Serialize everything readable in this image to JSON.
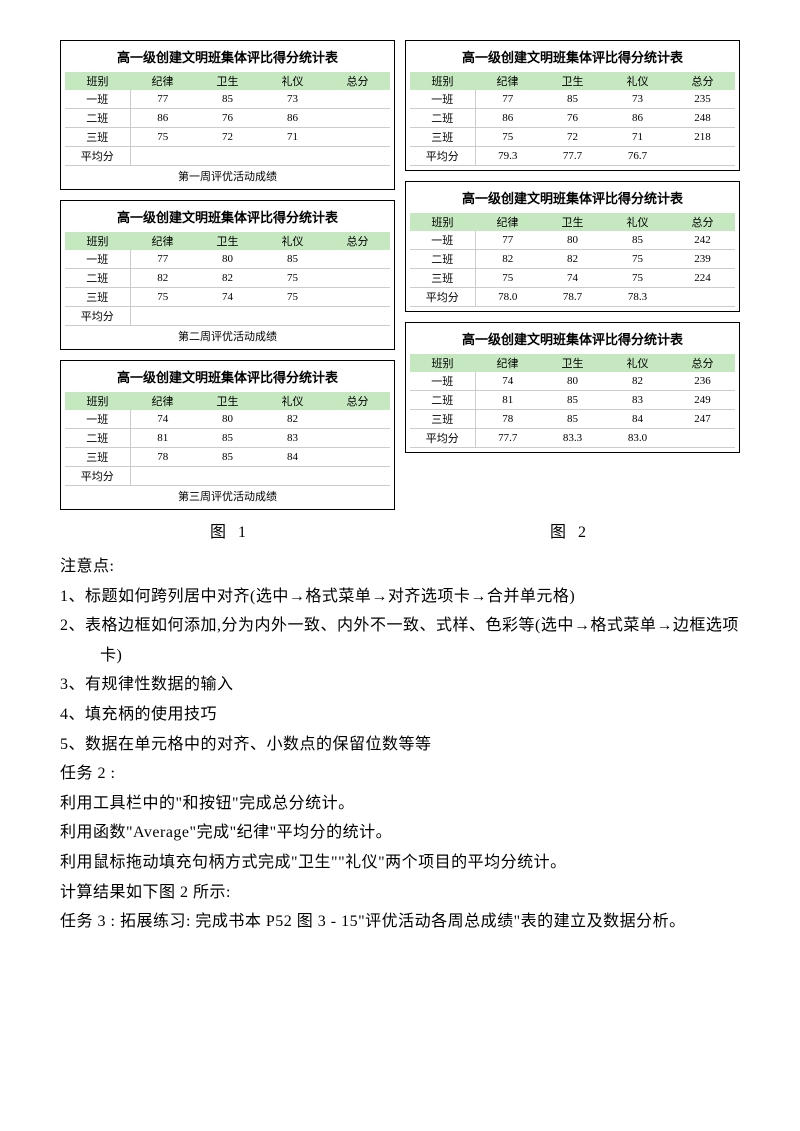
{
  "common": {
    "title": "高一级创建文明班集体评比得分统计表",
    "columns": [
      "班别",
      "纪律",
      "卫生",
      "礼仪",
      "总分"
    ],
    "classes": [
      "一班",
      "二班",
      "三班",
      "平均分"
    ],
    "captions": [
      "第一周评优活动成绩",
      "第二周评优活动成绩",
      "第三周评优活动成绩"
    ]
  },
  "left_tables": [
    {
      "rows": [
        [
          "一班",
          "77",
          "85",
          "73",
          ""
        ],
        [
          "二班",
          "86",
          "76",
          "86",
          ""
        ],
        [
          "三班",
          "75",
          "72",
          "71",
          ""
        ],
        [
          "平均分",
          "",
          "",
          "",
          ""
        ]
      ],
      "caption": "第一周评优活动成绩"
    },
    {
      "rows": [
        [
          "一班",
          "77",
          "80",
          "85",
          ""
        ],
        [
          "二班",
          "82",
          "82",
          "75",
          ""
        ],
        [
          "三班",
          "75",
          "74",
          "75",
          ""
        ],
        [
          "平均分",
          "",
          "",
          "",
          ""
        ]
      ],
      "caption": "第二周评优活动成绩"
    },
    {
      "rows": [
        [
          "一班",
          "74",
          "80",
          "82",
          ""
        ],
        [
          "二班",
          "81",
          "85",
          "83",
          ""
        ],
        [
          "三班",
          "78",
          "85",
          "84",
          ""
        ],
        [
          "平均分",
          "",
          "",
          "",
          ""
        ]
      ],
      "caption": "第三周评优活动成绩"
    }
  ],
  "right_tables": [
    {
      "rows": [
        [
          "一班",
          "77",
          "85",
          "73",
          "235"
        ],
        [
          "二班",
          "86",
          "76",
          "86",
          "248"
        ],
        [
          "三班",
          "75",
          "72",
          "71",
          "218"
        ],
        [
          "平均分",
          "79.3",
          "77.7",
          "76.7",
          ""
        ]
      ]
    },
    {
      "rows": [
        [
          "一班",
          "77",
          "80",
          "85",
          "242"
        ],
        [
          "二班",
          "82",
          "82",
          "75",
          "239"
        ],
        [
          "三班",
          "75",
          "74",
          "75",
          "224"
        ],
        [
          "平均分",
          "78.0",
          "78.7",
          "78.3",
          ""
        ]
      ]
    },
    {
      "rows": [
        [
          "一班",
          "74",
          "80",
          "82",
          "236"
        ],
        [
          "二班",
          "81",
          "85",
          "83",
          "249"
        ],
        [
          "三班",
          "78",
          "85",
          "84",
          "247"
        ],
        [
          "平均分",
          "77.7",
          "83.3",
          "83.0",
          ""
        ]
      ]
    }
  ],
  "fig_labels": [
    "图 1",
    "图 2"
  ],
  "body": {
    "note_title": "注意点:",
    "notes": [
      "1、标题如何跨列居中对齐(选中→格式菜单→对齐选项卡→合并单元格)",
      "2、表格边框如何添加,分为内外一致、内外不一致、式样、色彩等(选中→格式菜单→边框选项卡)",
      "3、有规律性数据的输入",
      "4、填充柄的使用技巧",
      "5、数据在单元格中的对齐、小数点的保留位数等等"
    ],
    "task2_title": "任务 2 :",
    "task2_lines": [
      "利用工具栏中的\"和按钮\"完成总分统计。",
      "利用函数\"Average\"完成\"纪律\"平均分的统计。",
      "利用鼠标拖动填充句柄方式完成\"卫生\"\"礼仪\"两个项目的平均分统计。",
      "计算结果如下图 2 所示:"
    ],
    "task3": "任务 3 : 拓展练习: 完成书本 P52 图 3 - 15\"评优活动各周总成绩\"表的建立及数据分析。"
  }
}
